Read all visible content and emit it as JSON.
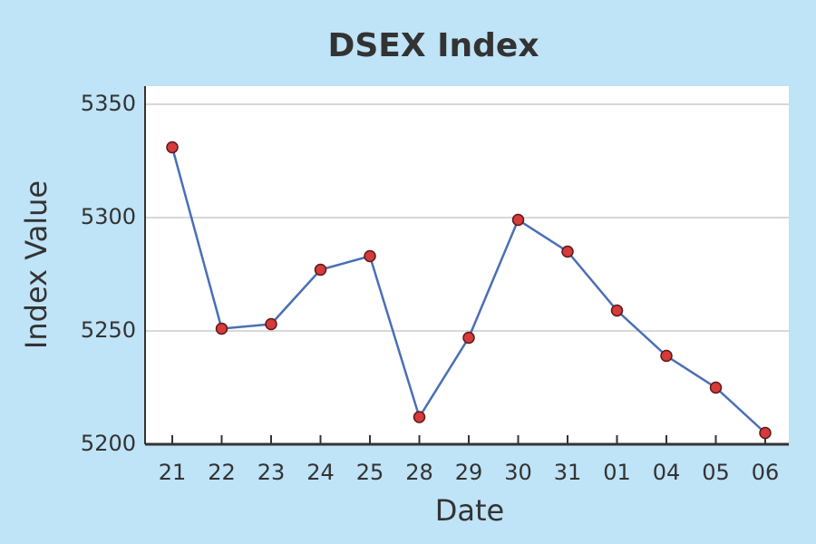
{
  "chart_data": {
    "type": "line",
    "title": "DSEX Index",
    "x_label": "Date",
    "y_label": "Index Value",
    "categories": [
      "21",
      "22",
      "23",
      "24",
      "25",
      "28",
      "29",
      "30",
      "31",
      "01",
      "04",
      "05",
      "06"
    ],
    "series": [
      {
        "name": "DSEX",
        "color": "#4a6fb5",
        "marker_color": "#d63a3a",
        "values": [
          5331,
          5251,
          5253,
          5277,
          5283,
          5212,
          5247,
          5299,
          5285,
          5259,
          5239,
          5225,
          5205
        ]
      }
    ],
    "ylim": [
      5200,
      5358
    ],
    "yticks": [
      5200,
      5250,
      5300,
      5350
    ],
    "grid": true
  }
}
